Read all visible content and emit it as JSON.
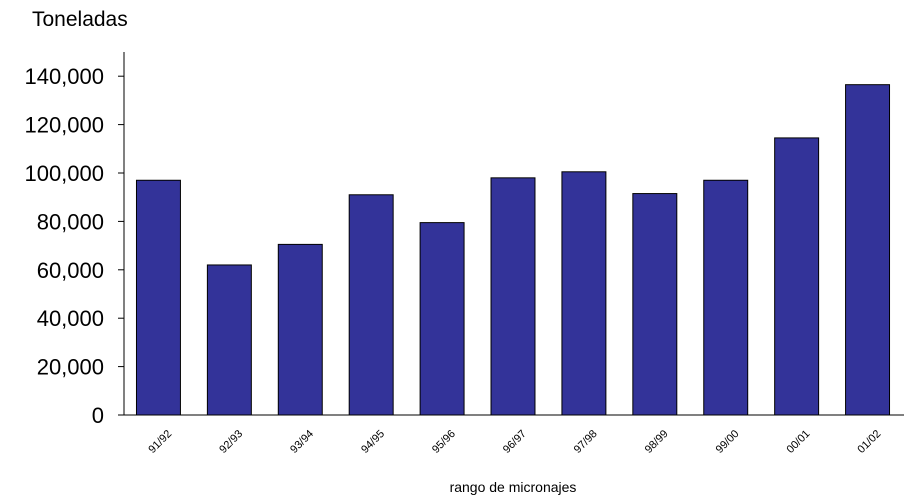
{
  "chart_data": {
    "type": "bar",
    "title": "",
    "ylabel": "Toneladas",
    "xlabel": "rango de micronajes",
    "categories": [
      "91/92",
      "92/93",
      "93/94",
      "94/95",
      "95/96",
      "96/97",
      "97/98",
      "98/99",
      "99/00",
      "00/01",
      "01/02"
    ],
    "values": [
      97000,
      62000,
      70500,
      91000,
      79500,
      98000,
      100500,
      91500,
      97000,
      114500,
      136500
    ],
    "ylim": [
      0,
      150000
    ],
    "yticks": [
      0,
      20000,
      40000,
      60000,
      80000,
      100000,
      120000,
      140000
    ],
    "ytick_labels": [
      "0",
      "20,000",
      "40,000",
      "60,000",
      "80,000",
      "100,000",
      "120,000",
      "140,000"
    ],
    "grid": false,
    "bar_color": "#333399",
    "bar_edge_color": "#000000"
  }
}
